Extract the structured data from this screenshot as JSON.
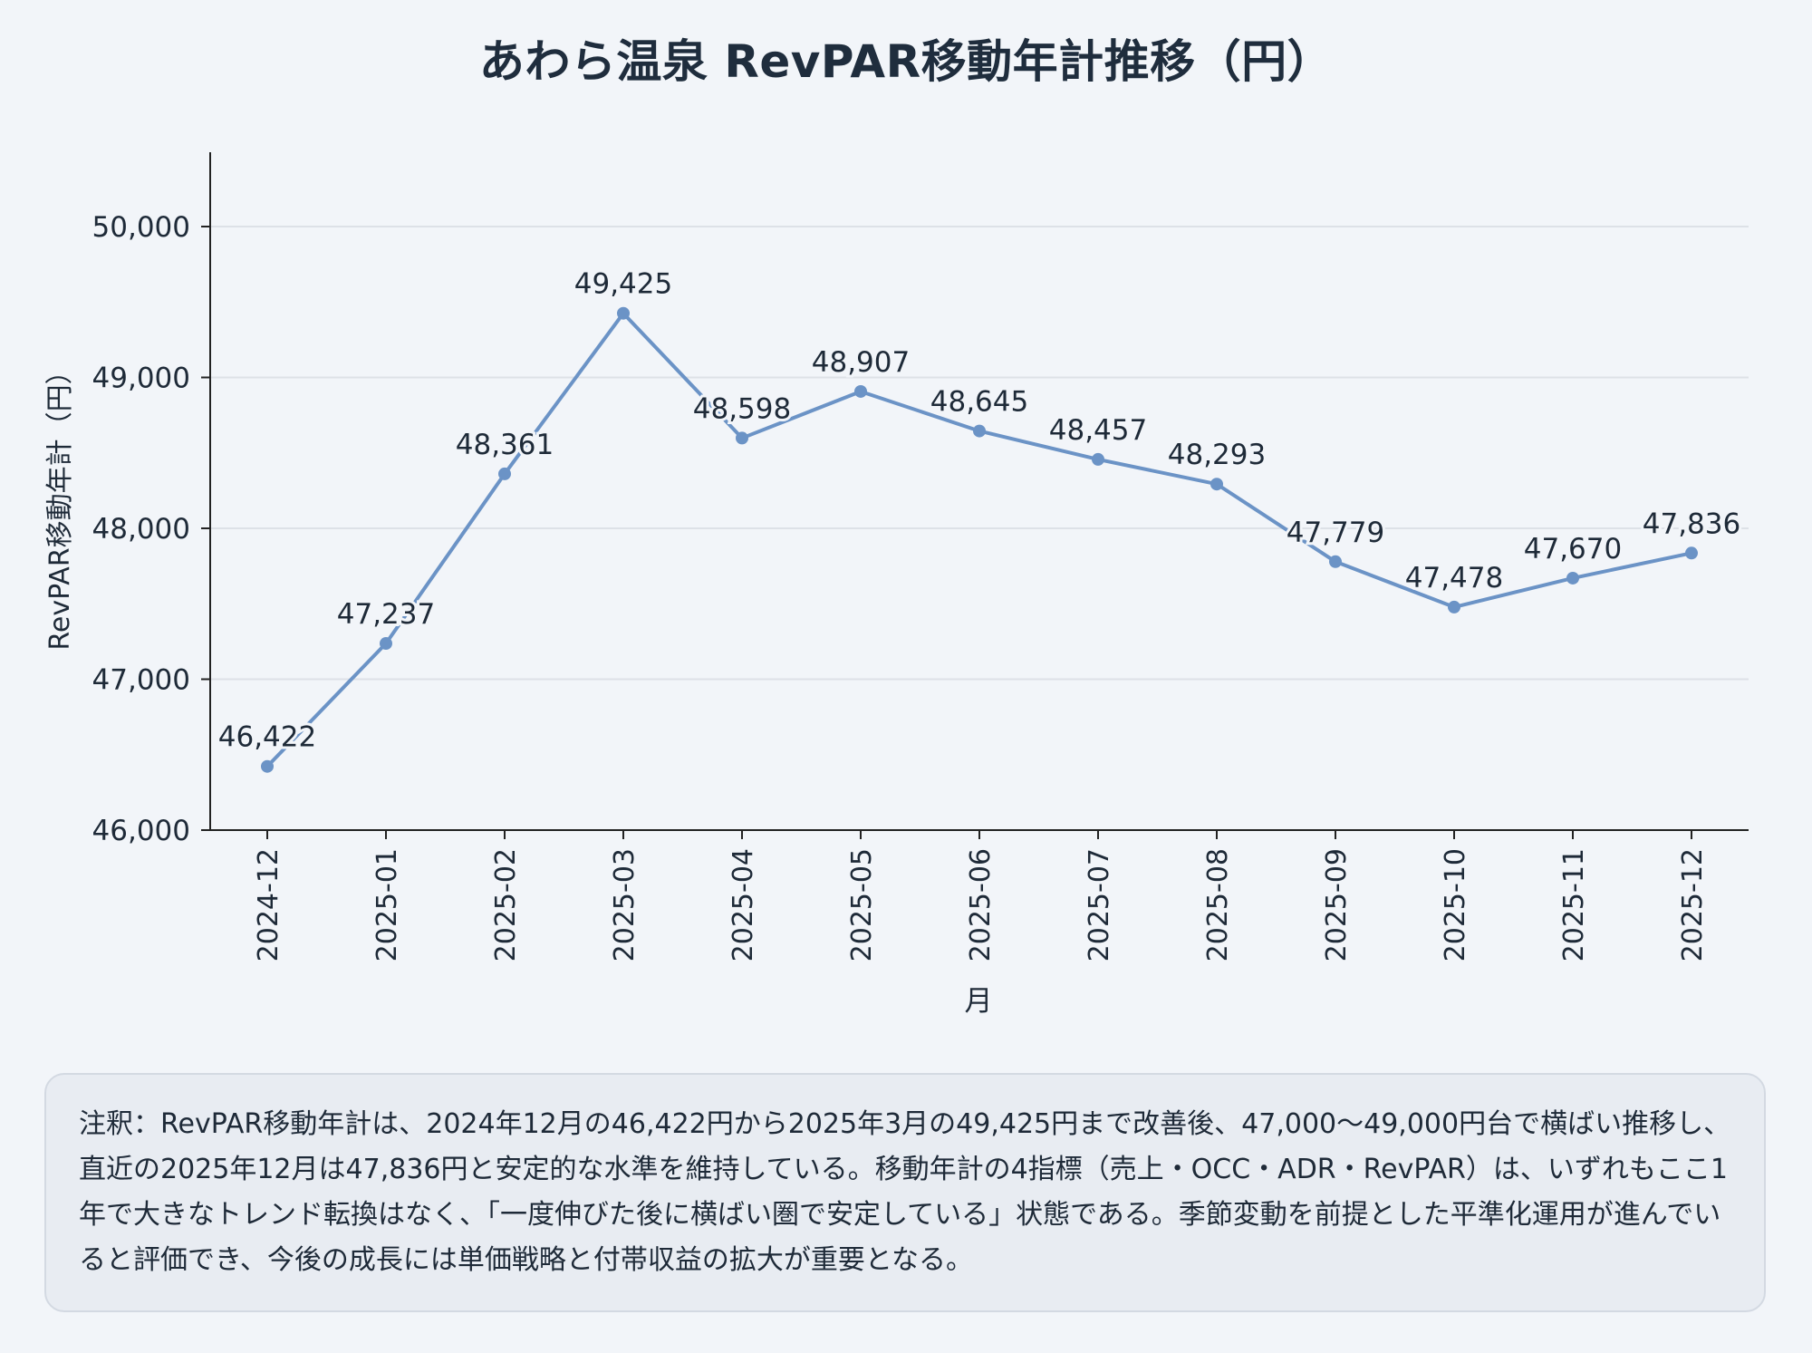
{
  "title": "あわら温泉 RevPAR移動年計推移（円）",
  "colors": {
    "line": "#6b93c6",
    "grid": "#dde1e7",
    "axis": "#222222",
    "background": "#f2f5f9"
  },
  "chart_data": {
    "type": "line",
    "title": "あわら温泉 RevPAR移動年計推移（円）",
    "xlabel": "月",
    "ylabel": "RevPAR移動年計（円）",
    "ylim": [
      46000,
      50500
    ],
    "yticks": [
      46000,
      47000,
      48000,
      49000,
      50000
    ],
    "ytick_labels": [
      "46,000",
      "47,000",
      "48,000",
      "49,000",
      "50,000"
    ],
    "grid": true,
    "categories": [
      "2024-12",
      "2025-01",
      "2025-02",
      "2025-03",
      "2025-04",
      "2025-05",
      "2025-06",
      "2025-07",
      "2025-08",
      "2025-09",
      "2025-10",
      "2025-11",
      "2025-12"
    ],
    "values": [
      46422,
      47237,
      48361,
      49425,
      48598,
      48907,
      48645,
      48457,
      48293,
      47779,
      47478,
      47670,
      47836
    ],
    "data_labels": [
      "46,422",
      "47,237",
      "48,361",
      "49,425",
      "48,598",
      "48,907",
      "48,645",
      "48,457",
      "48,293",
      "47,779",
      "47,478",
      "47,670",
      "47,836"
    ]
  },
  "note": {
    "text": "注釈：RevPAR移動年計は、2024年12月の46,422円から2025年3月の49,425円まで改善後、47,000〜49,000円台で横ばい推移し、直近の2025年12月は47,836円と安定的な水準を維持している。移動年計の4指標（売上・OCC・ADR・RevPAR）は、いずれもここ1年で大きなトレンド転換はなく、「一度伸びた後に横ばい圏で安定している」状態である。季節変動を前提とした平準化運用が進んでいると評価でき、今後の成長には単価戦略と付帯収益の拡大が重要となる。"
  }
}
